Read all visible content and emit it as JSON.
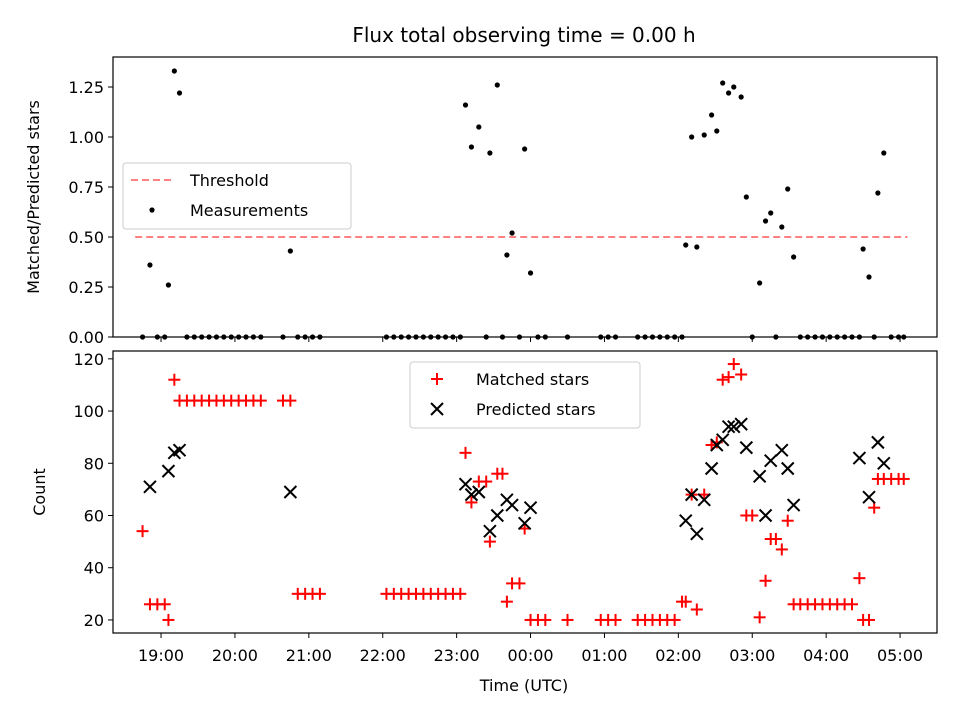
{
  "chart_data": [
    {
      "type": "scatter",
      "title": "Flux total observing time = 0.00 h",
      "xlabel": "",
      "ylabel": "Matched/Predicted stars",
      "ylim": [
        0,
        1.4
      ],
      "yticks": [
        "0.00",
        "0.25",
        "0.50",
        "0.75",
        "1.00",
        "1.25"
      ],
      "ytick_values": [
        0,
        0.25,
        0.5,
        0.75,
        1.0,
        1.25
      ],
      "xlim_hours": [
        18.35,
        29.5
      ],
      "legend_placement": "center-left",
      "threshold": {
        "name": "Threshold",
        "value": 0.5,
        "x_range_hours": [
          18.65,
          29.1
        ],
        "color": "#ff8080"
      },
      "series": [
        {
          "name": "Measurements",
          "color": "#000000",
          "points_hours": [
            [
              18.75,
              0
            ],
            [
              18.85,
              0.36
            ],
            [
              18.95,
              0
            ],
            [
              19.05,
              0
            ],
            [
              19.1,
              0.26
            ],
            [
              19.18,
              1.33
            ],
            [
              19.25,
              1.22
            ],
            [
              19.35,
              0
            ],
            [
              19.45,
              0
            ],
            [
              19.55,
              0
            ],
            [
              19.65,
              0
            ],
            [
              19.75,
              0
            ],
            [
              19.85,
              0
            ],
            [
              19.95,
              0
            ],
            [
              20.05,
              0
            ],
            [
              20.15,
              0
            ],
            [
              20.25,
              0
            ],
            [
              20.35,
              0
            ],
            [
              20.65,
              0
            ],
            [
              20.75,
              0.43
            ],
            [
              20.85,
              0
            ],
            [
              20.95,
              0
            ],
            [
              21.05,
              0
            ],
            [
              21.15,
              0
            ],
            [
              22.05,
              0
            ],
            [
              22.15,
              0
            ],
            [
              22.25,
              0
            ],
            [
              22.35,
              0
            ],
            [
              22.45,
              0
            ],
            [
              22.55,
              0
            ],
            [
              22.65,
              0
            ],
            [
              22.75,
              0
            ],
            [
              22.85,
              0
            ],
            [
              22.95,
              0
            ],
            [
              23.05,
              0
            ],
            [
              23.12,
              1.16
            ],
            [
              23.2,
              0.95
            ],
            [
              23.3,
              1.05
            ],
            [
              23.4,
              0
            ],
            [
              23.45,
              0.92
            ],
            [
              23.55,
              1.26
            ],
            [
              23.62,
              0
            ],
            [
              23.68,
              0.41
            ],
            [
              23.75,
              0.52
            ],
            [
              23.85,
              0
            ],
            [
              23.92,
              0.94
            ],
            [
              24.0,
              0.32
            ],
            [
              24.1,
              0
            ],
            [
              24.2,
              0
            ],
            [
              24.5,
              0
            ],
            [
              24.95,
              0
            ],
            [
              25.05,
              0
            ],
            [
              25.15,
              0
            ],
            [
              25.45,
              0
            ],
            [
              25.55,
              0
            ],
            [
              25.65,
              0
            ],
            [
              25.75,
              0
            ],
            [
              25.85,
              0
            ],
            [
              25.95,
              0
            ],
            [
              26.05,
              0
            ],
            [
              26.1,
              0.46
            ],
            [
              26.18,
              1.0
            ],
            [
              26.25,
              0.45
            ],
            [
              26.35,
              1.01
            ],
            [
              26.45,
              1.11
            ],
            [
              26.52,
              1.03
            ],
            [
              26.6,
              1.27
            ],
            [
              26.68,
              1.22
            ],
            [
              26.75,
              1.25
            ],
            [
              26.85,
              1.2
            ],
            [
              26.92,
              0.7
            ],
            [
              27.0,
              0
            ],
            [
              27.1,
              0.27
            ],
            [
              27.18,
              0.58
            ],
            [
              27.25,
              0.62
            ],
            [
              27.32,
              0
            ],
            [
              27.4,
              0.55
            ],
            [
              27.48,
              0.74
            ],
            [
              27.56,
              0.4
            ],
            [
              27.65,
              0
            ],
            [
              27.75,
              0
            ],
            [
              27.85,
              0
            ],
            [
              27.95,
              0
            ],
            [
              28.05,
              0
            ],
            [
              28.15,
              0
            ],
            [
              28.25,
              0
            ],
            [
              28.35,
              0
            ],
            [
              28.45,
              0
            ],
            [
              28.5,
              0.44
            ],
            [
              28.58,
              0.3
            ],
            [
              28.65,
              0
            ],
            [
              28.7,
              0.72
            ],
            [
              28.78,
              0.92
            ],
            [
              28.88,
              0
            ],
            [
              28.98,
              0
            ],
            [
              29.05,
              0
            ]
          ]
        }
      ]
    },
    {
      "type": "scatter",
      "title": "",
      "xlabel": "Time (UTC)",
      "ylabel": "Count",
      "ylim": [
        15,
        123
      ],
      "yticks": [
        "20",
        "40",
        "60",
        "80",
        "100",
        "120"
      ],
      "ytick_values": [
        20,
        40,
        60,
        80,
        100,
        120
      ],
      "xlim_hours": [
        18.35,
        29.5
      ],
      "xticks": [
        "19:00",
        "20:00",
        "21:00",
        "22:00",
        "23:00",
        "00:00",
        "01:00",
        "02:00",
        "03:00",
        "04:00",
        "05:00"
      ],
      "xtick_hours": [
        19,
        20,
        21,
        22,
        23,
        24,
        25,
        26,
        27,
        28,
        29
      ],
      "legend_placement": "upper-center",
      "series": [
        {
          "name": "Matched stars",
          "marker": "plus",
          "color": "#ff0000",
          "points_hours": [
            [
              18.75,
              54
            ],
            [
              18.85,
              26
            ],
            [
              18.95,
              26
            ],
            [
              19.05,
              26
            ],
            [
              19.1,
              20
            ],
            [
              19.18,
              112
            ],
            [
              19.25,
              104
            ],
            [
              19.35,
              104
            ],
            [
              19.45,
              104
            ],
            [
              19.55,
              104
            ],
            [
              19.65,
              104
            ],
            [
              19.75,
              104
            ],
            [
              19.85,
              104
            ],
            [
              19.95,
              104
            ],
            [
              20.05,
              104
            ],
            [
              20.15,
              104
            ],
            [
              20.25,
              104
            ],
            [
              20.35,
              104
            ],
            [
              20.65,
              104
            ],
            [
              20.75,
              104
            ],
            [
              20.85,
              30
            ],
            [
              20.95,
              30
            ],
            [
              21.05,
              30
            ],
            [
              21.15,
              30
            ],
            [
              22.05,
              30
            ],
            [
              22.15,
              30
            ],
            [
              22.25,
              30
            ],
            [
              22.35,
              30
            ],
            [
              22.45,
              30
            ],
            [
              22.55,
              30
            ],
            [
              22.65,
              30
            ],
            [
              22.75,
              30
            ],
            [
              22.85,
              30
            ],
            [
              22.95,
              30
            ],
            [
              23.05,
              30
            ],
            [
              23.12,
              84
            ],
            [
              23.2,
              65
            ],
            [
              23.3,
              73
            ],
            [
              23.4,
              73
            ],
            [
              23.45,
              50
            ],
            [
              23.55,
              76
            ],
            [
              23.62,
              76
            ],
            [
              23.68,
              27
            ],
            [
              23.75,
              34
            ],
            [
              23.85,
              34
            ],
            [
              23.92,
              55
            ],
            [
              24.0,
              20
            ],
            [
              24.1,
              20
            ],
            [
              24.2,
              20
            ],
            [
              24.5,
              20
            ],
            [
              24.95,
              20
            ],
            [
              25.05,
              20
            ],
            [
              25.15,
              20
            ],
            [
              25.45,
              20
            ],
            [
              25.55,
              20
            ],
            [
              25.65,
              20
            ],
            [
              25.75,
              20
            ],
            [
              25.85,
              20
            ],
            [
              25.95,
              20
            ],
            [
              26.05,
              27
            ],
            [
              26.1,
              27
            ],
            [
              26.18,
              68
            ],
            [
              26.25,
              24
            ],
            [
              26.35,
              68
            ],
            [
              26.45,
              87
            ],
            [
              26.52,
              88
            ],
            [
              26.6,
              112
            ],
            [
              26.68,
              113
            ],
            [
              26.75,
              118
            ],
            [
              26.85,
              114
            ],
            [
              26.92,
              60
            ],
            [
              27.0,
              60
            ],
            [
              27.1,
              21
            ],
            [
              27.18,
              35
            ],
            [
              27.25,
              51
            ],
            [
              27.32,
              51
            ],
            [
              27.4,
              47
            ],
            [
              27.48,
              58
            ],
            [
              27.56,
              26
            ],
            [
              27.65,
              26
            ],
            [
              27.75,
              26
            ],
            [
              27.85,
              26
            ],
            [
              27.95,
              26
            ],
            [
              28.05,
              26
            ],
            [
              28.15,
              26
            ],
            [
              28.25,
              26
            ],
            [
              28.35,
              26
            ],
            [
              28.45,
              36
            ],
            [
              28.5,
              20
            ],
            [
              28.58,
              20
            ],
            [
              28.65,
              63
            ],
            [
              28.7,
              74
            ],
            [
              28.78,
              74
            ],
            [
              28.88,
              74
            ],
            [
              28.98,
              74
            ],
            [
              29.05,
              74
            ]
          ]
        },
        {
          "name": "Predicted stars",
          "marker": "x",
          "color": "#000000",
          "points_hours": [
            [
              18.85,
              71
            ],
            [
              19.1,
              77
            ],
            [
              19.18,
              84
            ],
            [
              19.25,
              85
            ],
            [
              20.75,
              69
            ],
            [
              23.12,
              72
            ],
            [
              23.2,
              68
            ],
            [
              23.3,
              69
            ],
            [
              23.45,
              54
            ],
            [
              23.55,
              60
            ],
            [
              23.68,
              66
            ],
            [
              23.75,
              64
            ],
            [
              23.92,
              57
            ],
            [
              24.0,
              63
            ],
            [
              26.1,
              58
            ],
            [
              26.18,
              68
            ],
            [
              26.25,
              53
            ],
            [
              26.35,
              66
            ],
            [
              26.45,
              78
            ],
            [
              26.52,
              87
            ],
            [
              26.6,
              89
            ],
            [
              26.68,
              94
            ],
            [
              26.75,
              94
            ],
            [
              26.85,
              95
            ],
            [
              26.92,
              86
            ],
            [
              27.1,
              75
            ],
            [
              27.18,
              60
            ],
            [
              27.25,
              81
            ],
            [
              27.4,
              85
            ],
            [
              27.48,
              78
            ],
            [
              27.56,
              64
            ],
            [
              28.45,
              82
            ],
            [
              28.58,
              67
            ],
            [
              28.7,
              88
            ],
            [
              28.78,
              80
            ]
          ]
        }
      ]
    }
  ]
}
